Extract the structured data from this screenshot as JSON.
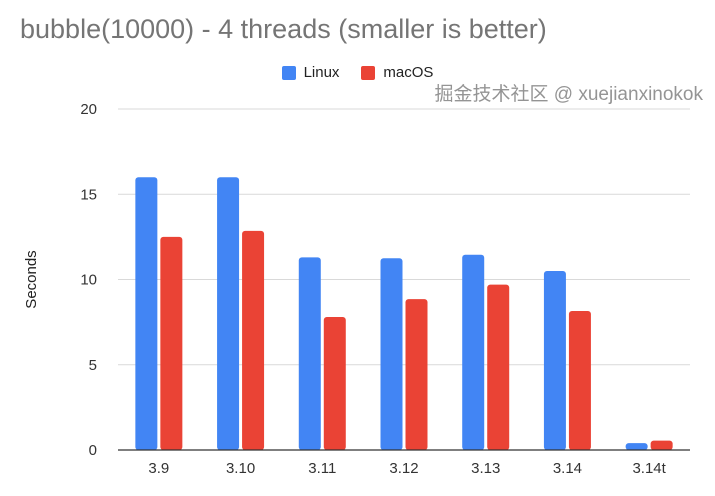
{
  "chart_data": {
    "type": "bar",
    "title": "bubble(10000) - 4 threads (smaller is better)",
    "xlabel": "",
    "ylabel": "Seconds",
    "ylim": [
      0,
      20
    ],
    "yticks": [
      0,
      5,
      10,
      15,
      20
    ],
    "grid": true,
    "legend_placement": "top",
    "categories": [
      "3.9",
      "3.10",
      "3.11",
      "3.12",
      "3.13",
      "3.14",
      "3.14t"
    ],
    "series": [
      {
        "name": "Linux",
        "color": "#4285f4",
        "values": [
          16.0,
          16.0,
          11.3,
          11.25,
          11.45,
          10.5,
          0.4
        ]
      },
      {
        "name": "macOS",
        "color": "#ea4335",
        "values": [
          12.5,
          12.85,
          7.8,
          8.85,
          9.7,
          8.15,
          0.55
        ]
      }
    ]
  },
  "watermark": "掘金技术社区 @ xuejianxinokok"
}
